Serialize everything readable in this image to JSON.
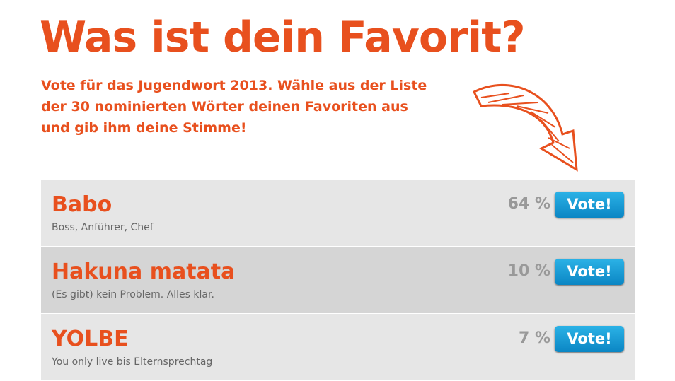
{
  "header": {
    "title": "Was ist dein Favorit?",
    "intro": [
      "Vote für das Jugendwort 2013. Wähle aus der Liste",
      "der 30 nominierten Wörter deinen Favoriten aus",
      "und gib ihm deine Stimme!"
    ]
  },
  "vote_label": "Vote!",
  "items": [
    {
      "name": "Babo",
      "description": "Boss, Anführer, Chef",
      "percent": "64 %"
    },
    {
      "name": "Hakuna matata",
      "description": "(Es gibt) kein Problem. Alles klar.",
      "percent": "10 %"
    },
    {
      "name": "YOLBE",
      "description": "You only live bis Elternsprechtag",
      "percent": "7 %"
    }
  ]
}
